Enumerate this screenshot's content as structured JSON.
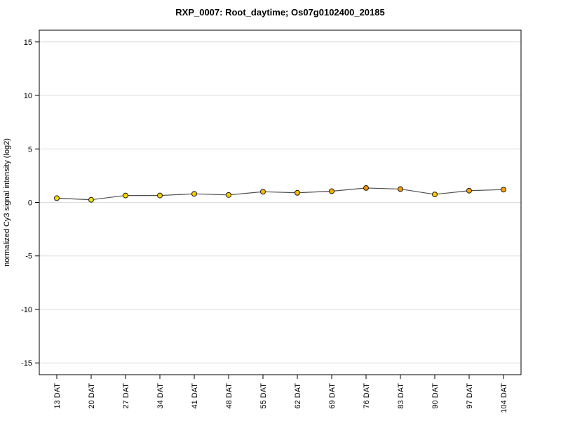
{
  "chart_data": {
    "type": "line",
    "title": "RXP_0007: Root_daytime; Os07g0102400_20185",
    "ylabel": "normalized Cy3 signal intensity (log2)",
    "xlabel": "",
    "categories": [
      "13 DAT",
      "20 DAT",
      "27 DAT",
      "34 DAT",
      "41 DAT",
      "48 DAT",
      "55 DAT",
      "62 DAT",
      "69 DAT",
      "76 DAT",
      "83 DAT",
      "90 DAT",
      "97 DAT",
      "104 DAT"
    ],
    "values": [
      0.4,
      0.25,
      0.65,
      0.65,
      0.8,
      0.7,
      1.0,
      0.9,
      1.05,
      1.35,
      1.25,
      0.75,
      1.1,
      1.2
    ],
    "point_colors": [
      "#fcdc00",
      "#fde303",
      "#fbd400",
      "#fbd400",
      "#fac700",
      "#fbd100",
      "#f9b900",
      "#f9bf00",
      "#f8b100",
      "#f59200",
      "#f69b00",
      "#fac900",
      "#f7a700",
      "#f7a000"
    ],
    "yticks": [
      -15,
      -10,
      -5,
      0,
      5,
      10,
      15
    ],
    "ylim": [
      -16.1,
      16.1
    ],
    "grid": true,
    "colors": {
      "line": "#4d4d4d",
      "point_border": "#1a1a1a",
      "grid": "#dcdcdc",
      "box": "#000000",
      "text": "#000000",
      "background": "#ffffff"
    }
  }
}
